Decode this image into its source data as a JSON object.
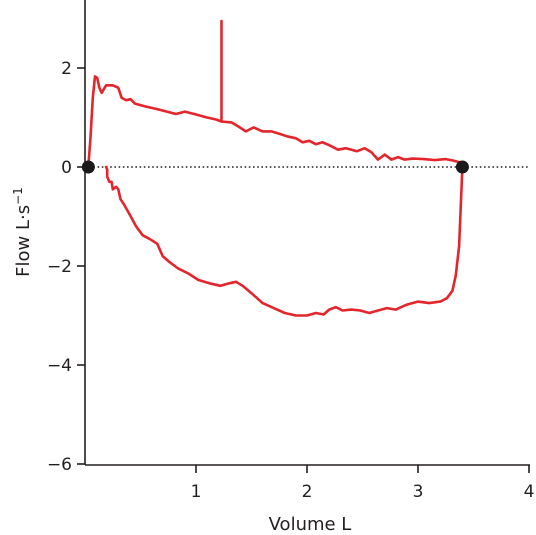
{
  "chart_data": {
    "type": "line",
    "xlabel": "Volume L",
    "ylabel_main": "Flow L·s",
    "ylabel_sup": "−1",
    "xlim": [
      0,
      4
    ],
    "ylim": [
      -6,
      3.5
    ],
    "x_ticks": [
      {
        "value": 1,
        "label": "1"
      },
      {
        "value": 2,
        "label": "2"
      },
      {
        "value": 3,
        "label": "3"
      },
      {
        "value": 4,
        "label": "4"
      }
    ],
    "y_ticks": [
      {
        "value": 2,
        "label": "2"
      },
      {
        "value": 0,
        "label": "0"
      },
      {
        "value": -2,
        "label": "−2"
      },
      {
        "value": -4,
        "label": "−4"
      },
      {
        "value": -6,
        "label": "−6"
      }
    ],
    "zero_line": {
      "y": 0,
      "style": "dotted",
      "color": "#231f20"
    },
    "series_color": "#e2262c",
    "series": [
      {
        "id": "expiratory",
        "points": [
          [
            0.03,
            0
          ],
          [
            0.05,
            0.6
          ],
          [
            0.07,
            1.4
          ],
          [
            0.09,
            1.83
          ],
          [
            0.11,
            1.8
          ],
          [
            0.13,
            1.6
          ],
          [
            0.15,
            1.5
          ],
          [
            0.19,
            1.65
          ],
          [
            0.25,
            1.65
          ],
          [
            0.3,
            1.6
          ],
          [
            0.33,
            1.4
          ],
          [
            0.37,
            1.35
          ],
          [
            0.41,
            1.37
          ],
          [
            0.45,
            1.28
          ],
          [
            0.55,
            1.22
          ],
          [
            0.65,
            1.17
          ],
          [
            0.72,
            1.13
          ],
          [
            0.82,
            1.07
          ],
          [
            0.9,
            1.12
          ],
          [
            1.0,
            1.06
          ],
          [
            1.1,
            1.0
          ],
          [
            1.18,
            0.96
          ],
          [
            1.23,
            0.92
          ],
          [
            1.32,
            0.9
          ],
          [
            1.38,
            0.82
          ],
          [
            1.45,
            0.72
          ],
          [
            1.52,
            0.8
          ],
          [
            1.6,
            0.72
          ],
          [
            1.68,
            0.72
          ],
          [
            1.75,
            0.67
          ],
          [
            1.82,
            0.62
          ],
          [
            1.9,
            0.58
          ],
          [
            1.96,
            0.5
          ],
          [
            2.02,
            0.53
          ],
          [
            2.08,
            0.46
          ],
          [
            2.14,
            0.5
          ],
          [
            2.2,
            0.44
          ],
          [
            2.28,
            0.35
          ],
          [
            2.35,
            0.38
          ],
          [
            2.45,
            0.32
          ],
          [
            2.52,
            0.38
          ],
          [
            2.58,
            0.3
          ],
          [
            2.64,
            0.15
          ],
          [
            2.7,
            0.25
          ],
          [
            2.76,
            0.15
          ],
          [
            2.82,
            0.2
          ],
          [
            2.88,
            0.15
          ],
          [
            2.95,
            0.17
          ],
          [
            3.05,
            0.16
          ],
          [
            3.15,
            0.14
          ],
          [
            3.25,
            0.16
          ],
          [
            3.32,
            0.13
          ],
          [
            3.38,
            0.09
          ],
          [
            3.4,
            0.0
          ]
        ]
      },
      {
        "id": "inspiratory",
        "points": [
          [
            3.4,
            0
          ],
          [
            3.37,
            -1.6
          ],
          [
            3.34,
            -2.2
          ],
          [
            3.31,
            -2.5
          ],
          [
            3.26,
            -2.65
          ],
          [
            3.2,
            -2.72
          ],
          [
            3.1,
            -2.75
          ],
          [
            3.0,
            -2.72
          ],
          [
            2.9,
            -2.78
          ],
          [
            2.8,
            -2.88
          ],
          [
            2.72,
            -2.85
          ],
          [
            2.64,
            -2.9
          ],
          [
            2.56,
            -2.95
          ],
          [
            2.48,
            -2.9
          ],
          [
            2.4,
            -2.88
          ],
          [
            2.32,
            -2.9
          ],
          [
            2.26,
            -2.83
          ],
          [
            2.2,
            -2.88
          ],
          [
            2.15,
            -2.98
          ],
          [
            2.08,
            -2.95
          ],
          [
            2.0,
            -3.0
          ],
          [
            1.9,
            -3.0
          ],
          [
            1.8,
            -2.95
          ],
          [
            1.7,
            -2.85
          ],
          [
            1.6,
            -2.75
          ],
          [
            1.5,
            -2.55
          ],
          [
            1.42,
            -2.4
          ],
          [
            1.36,
            -2.32
          ],
          [
            1.3,
            -2.35
          ],
          [
            1.22,
            -2.4
          ],
          [
            1.12,
            -2.35
          ],
          [
            1.02,
            -2.28
          ],
          [
            0.93,
            -2.15
          ],
          [
            0.84,
            -2.05
          ],
          [
            0.76,
            -1.92
          ],
          [
            0.7,
            -1.8
          ],
          [
            0.65,
            -1.55
          ],
          [
            0.58,
            -1.45
          ],
          [
            0.52,
            -1.38
          ],
          [
            0.46,
            -1.2
          ],
          [
            0.4,
            -0.95
          ],
          [
            0.35,
            -0.75
          ],
          [
            0.32,
            -0.65
          ],
          [
            0.3,
            -0.45
          ],
          [
            0.28,
            -0.4
          ],
          [
            0.25,
            -0.45
          ],
          [
            0.24,
            -0.3
          ],
          [
            0.22,
            -0.3
          ],
          [
            0.2,
            -0.2
          ],
          [
            0.2,
            -0.05
          ],
          [
            0.19,
            0.0
          ]
        ]
      },
      {
        "id": "spike",
        "points": [
          [
            1.23,
            0.92
          ],
          [
            1.23,
            2.95
          ]
        ]
      }
    ],
    "markers": [
      {
        "x": 0.03,
        "y": 0
      },
      {
        "x": 3.4,
        "y": 0
      }
    ]
  }
}
